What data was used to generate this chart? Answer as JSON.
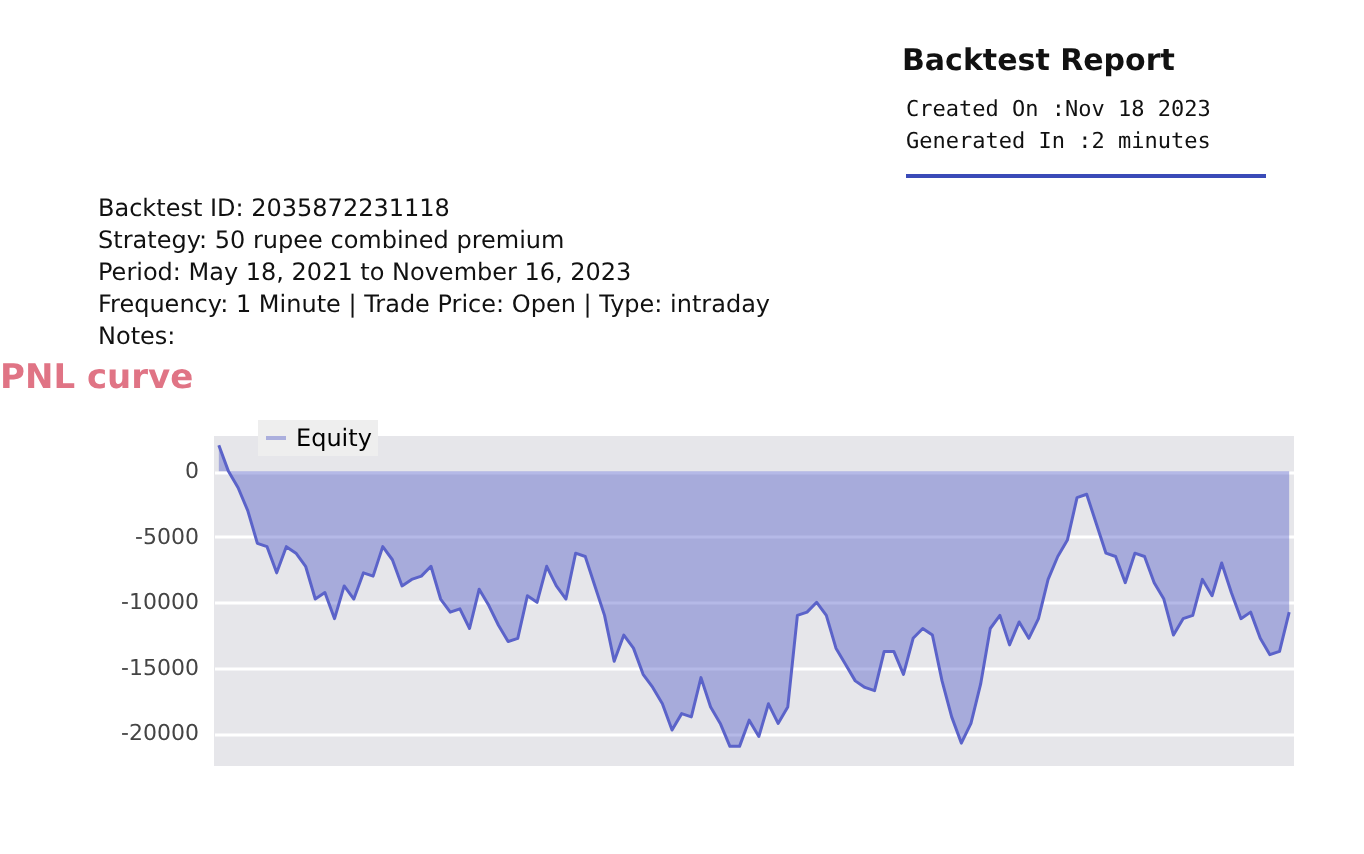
{
  "chart_data": {
    "type": "area",
    "title": "PNL curve",
    "annotations": [
      "Backtest Report",
      "Created On    :Nov 18 2023",
      "Generated In :2 minutes",
      "Backtest ID:  2035872231118",
      "Strategy:  50 rupee combined premium",
      "Period:  May 18, 2021 to November 16, 2023",
      "Frequency: 1 Minute | Trade Price: Open | Type: intraday",
      "Notes:"
    ],
    "categories": [
      null,
      null,
      null,
      null,
      null,
      null,
      null,
      null,
      null,
      null,
      null,
      null,
      null,
      null,
      null,
      null,
      null,
      null,
      null,
      null,
      null,
      null,
      null,
      null,
      null,
      null,
      null,
      null,
      null,
      null,
      null,
      null,
      null,
      null,
      null,
      null,
      null,
      null,
      null,
      null,
      null,
      null,
      null,
      null,
      null,
      null,
      null,
      null,
      null,
      null,
      null,
      null,
      null,
      null,
      null,
      null,
      null,
      null,
      null,
      null,
      null,
      null,
      null,
      null,
      null,
      null,
      null,
      null,
      null,
      null,
      null,
      null,
      null,
      null,
      null,
      null,
      null,
      null,
      null,
      null,
      null,
      null,
      null,
      null,
      null,
      null,
      null,
      null,
      null,
      null,
      null,
      null,
      null,
      null,
      null,
      null,
      null,
      null,
      null,
      null,
      null,
      null,
      null,
      null,
      null,
      null,
      null,
      null,
      null,
      null,
      null,
      null
    ],
    "series": [
      {
        "name": "Equity",
        "color": "#5b63c9",
        "values": [
          2000,
          0,
          -1250,
          -3000,
          -5500,
          -5750,
          -7750,
          -5750,
          -6250,
          -7250,
          -9750,
          -9250,
          -11250,
          -8750,
          -9750,
          -7750,
          -8000,
          -5750,
          -6750,
          -8750,
          -8250,
          -8000,
          -7250,
          -9750,
          -10750,
          -10500,
          -12000,
          -9000,
          -10250,
          -11750,
          -13000,
          -12750,
          -9500,
          -10000,
          -7250,
          -8750,
          -9750,
          -6250,
          -6500,
          -8750,
          -11000,
          -14500,
          -12500,
          -13500,
          -15500,
          -16500,
          -17750,
          -19750,
          -18500,
          -18750,
          -15750,
          -18000,
          -19250,
          -21000,
          -21000,
          -19000,
          -20250,
          -17750,
          -19250,
          -18000,
          -11000,
          -10750,
          -10000,
          -11000,
          -13500,
          -14750,
          -16000,
          -16500,
          -16750,
          -13750,
          -13750,
          -15500,
          -12750,
          -12000,
          -12500,
          -16000,
          -18750,
          -20750,
          -19250,
          -16250,
          -12000,
          -11000,
          -13250,
          -11500,
          -12750,
          -11250,
          -8250,
          -6500,
          -5250,
          -2000,
          -1750,
          -4000,
          -6250,
          -6500,
          -8500,
          -6250,
          -6500,
          -8500,
          -9750,
          -12500,
          -11250,
          -11000,
          -8250,
          -9500,
          -7000,
          -9250,
          -11250,
          -10750,
          -12750,
          -14000,
          -13750,
          -10750
        ]
      }
    ],
    "ylim": [
      -22500,
      2700
    ],
    "yticks": [
      0,
      -5000,
      -10000,
      -15000,
      -20000
    ],
    "grid": "y",
    "legend": "top left",
    "tick_labels": "y"
  }
}
